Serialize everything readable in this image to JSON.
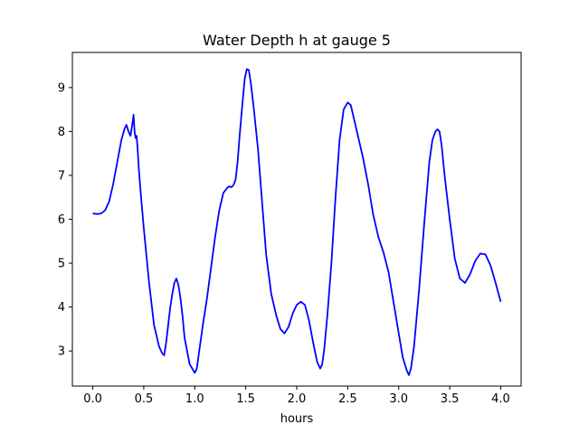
{
  "chart_data": {
    "type": "line",
    "title": "Water Depth h at gauge 5",
    "xlabel": "hours",
    "ylabel": "",
    "xlim": [
      -0.2,
      4.2
    ],
    "ylim": [
      2.2,
      9.8
    ],
    "xticks": [
      0.0,
      0.5,
      1.0,
      1.5,
      2.0,
      2.5,
      3.0,
      3.5,
      4.0
    ],
    "xtick_labels": [
      "0.0",
      "0.5",
      "1.0",
      "1.5",
      "2.0",
      "2.5",
      "3.0",
      "3.5",
      "4.0"
    ],
    "yticks": [
      3,
      4,
      5,
      6,
      7,
      8,
      9
    ],
    "ytick_labels": [
      "3",
      "4",
      "5",
      "6",
      "7",
      "8",
      "9"
    ],
    "grid": false,
    "series": [
      {
        "color": "#0000ff",
        "x": [
          0.0,
          0.05,
          0.08,
          0.12,
          0.16,
          0.2,
          0.24,
          0.28,
          0.31,
          0.33,
          0.35,
          0.37,
          0.39,
          0.4,
          0.41,
          0.42,
          0.43,
          0.44,
          0.45,
          0.47,
          0.5,
          0.55,
          0.6,
          0.65,
          0.68,
          0.7,
          0.72,
          0.74,
          0.76,
          0.78,
          0.8,
          0.82,
          0.84,
          0.86,
          0.88,
          0.9,
          0.95,
          1.0,
          1.02,
          1.05,
          1.08,
          1.12,
          1.16,
          1.2,
          1.24,
          1.28,
          1.32,
          1.34,
          1.36,
          1.38,
          1.4,
          1.42,
          1.44,
          1.47,
          1.49,
          1.51,
          1.53,
          1.55,
          1.58,
          1.62,
          1.66,
          1.7,
          1.75,
          1.8,
          1.84,
          1.88,
          1.92,
          1.96,
          2.0,
          2.04,
          2.08,
          2.12,
          2.16,
          2.2,
          2.23,
          2.25,
          2.27,
          2.3,
          2.34,
          2.38,
          2.42,
          2.46,
          2.5,
          2.53,
          2.56,
          2.6,
          2.65,
          2.7,
          2.75,
          2.8,
          2.85,
          2.9,
          2.95,
          3.0,
          3.04,
          3.08,
          3.1,
          3.12,
          3.15,
          3.2,
          3.25,
          3.3,
          3.33,
          3.36,
          3.38,
          3.4,
          3.42,
          3.45,
          3.5,
          3.55,
          3.6,
          3.65,
          3.7,
          3.75,
          3.8,
          3.85,
          3.9,
          3.95,
          4.0
        ],
        "y": [
          6.13,
          6.12,
          6.13,
          6.2,
          6.4,
          6.8,
          7.3,
          7.8,
          8.05,
          8.15,
          8.0,
          7.9,
          8.2,
          8.38,
          8.0,
          7.85,
          7.9,
          7.6,
          7.2,
          6.6,
          5.8,
          4.6,
          3.6,
          3.1,
          2.95,
          2.9,
          3.2,
          3.6,
          4.0,
          4.3,
          4.55,
          4.65,
          4.5,
          4.2,
          3.8,
          3.3,
          2.7,
          2.5,
          2.6,
          3.1,
          3.6,
          4.2,
          4.9,
          5.6,
          6.2,
          6.6,
          6.72,
          6.75,
          6.73,
          6.78,
          6.9,
          7.3,
          7.9,
          8.7,
          9.2,
          9.42,
          9.4,
          9.1,
          8.5,
          7.6,
          6.4,
          5.2,
          4.3,
          3.8,
          3.5,
          3.4,
          3.55,
          3.85,
          4.05,
          4.12,
          4.05,
          3.7,
          3.2,
          2.75,
          2.6,
          2.7,
          3.05,
          3.8,
          5.0,
          6.5,
          7.8,
          8.5,
          8.66,
          8.6,
          8.3,
          7.9,
          7.4,
          6.8,
          6.1,
          5.6,
          5.25,
          4.8,
          4.1,
          3.4,
          2.85,
          2.55,
          2.45,
          2.6,
          3.1,
          4.4,
          5.9,
          7.3,
          7.8,
          8.0,
          8.05,
          8.0,
          7.7,
          7.0,
          6.0,
          5.1,
          4.65,
          4.55,
          4.75,
          5.05,
          5.22,
          5.2,
          4.95,
          4.55,
          4.12
        ]
      }
    ]
  }
}
